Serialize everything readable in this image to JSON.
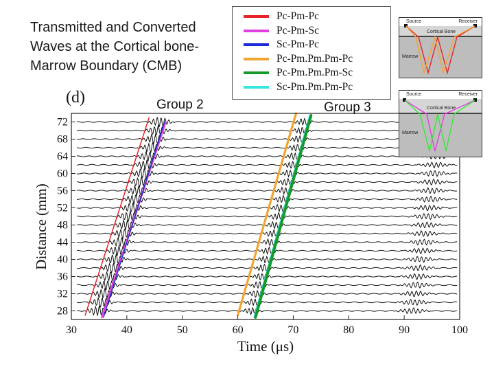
{
  "slide": {
    "title": "Transmitted and Converted Waves at the Cortical bone-Marrow Boundary (CMB)"
  },
  "chart_data": {
    "type": "line",
    "panel_label": "(d)",
    "xlabel": "Time (μs)",
    "ylabel": "Distance (mm)",
    "xlim": [
      30,
      100
    ],
    "ylim": [
      26,
      74
    ],
    "x_ticks": [
      30,
      40,
      50,
      60,
      70,
      80,
      90,
      100
    ],
    "y_ticks": [
      28,
      32,
      36,
      40,
      44,
      48,
      52,
      56,
      60,
      64,
      68,
      72
    ],
    "annotations": [
      "Group 2",
      "Group 3"
    ],
    "trace_offsets_mm": [
      28,
      30,
      32,
      34,
      36,
      38,
      40,
      42,
      44,
      46,
      48,
      50,
      52,
      54,
      56,
      58,
      60,
      62,
      64,
      66,
      68,
      70,
      72
    ],
    "series": [
      {
        "name": "Pc-Pm-Pc",
        "color": "#e8232a",
        "x": [
          32.5,
          44.0
        ],
        "y": [
          27.0,
          73.0
        ]
      },
      {
        "name": "Pc-Pm-Sc",
        "color": "#e040e0",
        "x": [
          35.5,
          47.0
        ],
        "y": [
          26.5,
          72.0
        ]
      },
      {
        "name": "Sc-Pm-Pc",
        "color": "#1a2ad8",
        "x": [
          35.8,
          46.8
        ],
        "y": [
          26.5,
          72.0
        ]
      },
      {
        "name": "Pc-Pm.Pm.Pm-Pc",
        "color": "#f2a531",
        "x": [
          60.0,
          70.5
        ],
        "y": [
          27.0,
          74.0
        ]
      },
      {
        "name": "Pc-Pm.Pm.Pm-Sc",
        "color": "#159a2a",
        "x": [
          63.2,
          73.2
        ],
        "y": [
          26.5,
          73.5
        ]
      },
      {
        "name": "Sc-Pm.Pm.Pm-Pc",
        "color": "#35e6e2",
        "x": [
          63.0,
          73.0
        ],
        "y": [
          26.5,
          73.5
        ]
      }
    ]
  },
  "insets": [
    {
      "source": "Source",
      "receiver": "Receiver",
      "layer1": "Cortical Bone",
      "layer2": "Marrow",
      "ray_colors": [
        "#e8232a",
        "#f2a531"
      ]
    },
    {
      "source": "Source",
      "receiver": "Receiver",
      "layer1": "Cortical Bone",
      "layer2": "Marrow",
      "ray_colors": [
        "#e040e0",
        "#35e834"
      ]
    }
  ]
}
